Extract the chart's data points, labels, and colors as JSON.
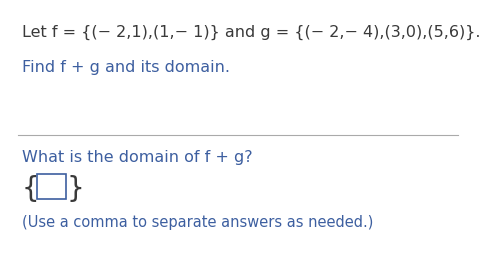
{
  "line1": "Let f = {(− 2,1),(1,− 1)} and g = {(− 2,− 4),(3,0),(5,6)}.",
  "line2": "Find f + g and its domain.",
  "line3": "What is the domain of f + g?",
  "line4": "(Use a comma to separate answers as needed.)",
  "text_color_dark": "#3a3a3a",
  "text_color_blue": "#3d5fa0",
  "separator_color": "#aaaaaa",
  "bg_color": "#ffffff",
  "font_size_line1": 11.5,
  "font_size_main": 11.5,
  "font_size_sub": 10.5,
  "font_size_brace": 20
}
